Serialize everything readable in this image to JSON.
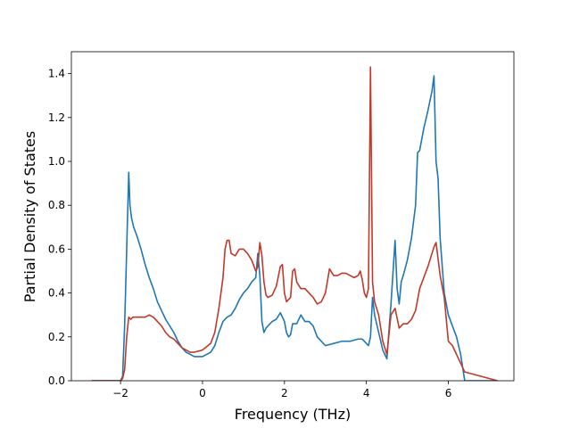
{
  "chart_data": {
    "type": "line",
    "title": "",
    "xlabel": "Frequency (THz)",
    "ylabel": "Partial Density of States",
    "xlim": [
      -3.2,
      7.6
    ],
    "ylim": [
      0.0,
      1.5
    ],
    "xticks": [
      -2,
      0,
      2,
      4,
      6
    ],
    "xtick_labels": [
      "−2",
      "0",
      "2",
      "4",
      "6"
    ],
    "yticks": [
      0.0,
      0.2,
      0.4,
      0.6,
      0.8,
      1.0,
      1.2,
      1.4
    ],
    "ytick_labels": [
      "0.0",
      "0.2",
      "0.4",
      "0.6",
      "0.8",
      "1.0",
      "1.2",
      "1.4"
    ],
    "grid": false,
    "series": [
      {
        "color": "#1f77b4",
        "x": [
          -2.7,
          -2.0,
          -1.95,
          -1.9,
          -1.85,
          -1.8,
          -1.77,
          -1.73,
          -1.68,
          -1.6,
          -1.5,
          -1.4,
          -1.3,
          -1.2,
          -1.1,
          -1.0,
          -0.9,
          -0.8,
          -0.7,
          -0.6,
          -0.5,
          -0.4,
          -0.3,
          -0.2,
          0.0,
          0.2,
          0.3,
          0.4,
          0.5,
          0.6,
          0.7,
          0.8,
          0.9,
          1.0,
          1.1,
          1.2,
          1.3,
          1.35,
          1.4,
          1.45,
          1.5,
          1.55,
          1.6,
          1.7,
          1.8,
          1.9,
          2.0,
          2.05,
          2.1,
          2.15,
          2.2,
          2.3,
          2.4,
          2.5,
          2.6,
          2.7,
          2.8,
          3.0,
          3.2,
          3.4,
          3.6,
          3.8,
          3.9,
          4.0,
          4.05,
          4.1,
          4.15,
          4.2,
          4.3,
          4.4,
          4.5,
          4.6,
          4.7,
          4.75,
          4.8,
          4.85,
          4.9,
          5.0,
          5.1,
          5.2,
          5.25,
          5.3,
          5.4,
          5.5,
          5.6,
          5.65,
          5.7,
          5.75,
          5.8,
          5.9,
          6.0,
          6.1,
          6.2,
          6.3,
          6.4,
          7.2
        ],
        "y": [
          0.0,
          0.0,
          0.02,
          0.25,
          0.6,
          0.95,
          0.8,
          0.74,
          0.7,
          0.66,
          0.6,
          0.53,
          0.47,
          0.42,
          0.36,
          0.32,
          0.28,
          0.25,
          0.22,
          0.18,
          0.15,
          0.13,
          0.12,
          0.11,
          0.11,
          0.13,
          0.16,
          0.22,
          0.27,
          0.29,
          0.3,
          0.33,
          0.37,
          0.4,
          0.42,
          0.45,
          0.47,
          0.58,
          0.48,
          0.27,
          0.22,
          0.24,
          0.25,
          0.27,
          0.28,
          0.31,
          0.27,
          0.22,
          0.2,
          0.21,
          0.26,
          0.26,
          0.3,
          0.27,
          0.27,
          0.25,
          0.2,
          0.16,
          0.17,
          0.18,
          0.18,
          0.19,
          0.19,
          0.17,
          0.16,
          0.2,
          0.38,
          0.3,
          0.22,
          0.14,
          0.1,
          0.35,
          0.64,
          0.42,
          0.35,
          0.45,
          0.48,
          0.55,
          0.65,
          0.8,
          1.04,
          1.05,
          1.15,
          1.23,
          1.32,
          1.39,
          1.0,
          0.92,
          0.65,
          0.4,
          0.3,
          0.25,
          0.2,
          0.12,
          0.0,
          0.0
        ]
      },
      {
        "color": "#c0392b",
        "x": [
          -2.7,
          -2.0,
          -1.95,
          -1.9,
          -1.85,
          -1.8,
          -1.75,
          -1.7,
          -1.6,
          -1.5,
          -1.4,
          -1.3,
          -1.2,
          -1.1,
          -1.0,
          -0.9,
          -0.8,
          -0.7,
          -0.6,
          -0.5,
          -0.4,
          -0.3,
          -0.2,
          0.0,
          0.2,
          0.3,
          0.4,
          0.5,
          0.55,
          0.6,
          0.65,
          0.7,
          0.8,
          0.9,
          1.0,
          1.1,
          1.2,
          1.3,
          1.35,
          1.4,
          1.45,
          1.5,
          1.55,
          1.6,
          1.7,
          1.8,
          1.9,
          1.95,
          2.0,
          2.05,
          2.1,
          2.15,
          2.2,
          2.25,
          2.3,
          2.4,
          2.5,
          2.6,
          2.7,
          2.8,
          2.9,
          3.0,
          3.1,
          3.2,
          3.3,
          3.4,
          3.5,
          3.6,
          3.7,
          3.8,
          3.85,
          3.9,
          3.95,
          4.0,
          4.05,
          4.1,
          4.15,
          4.2,
          4.3,
          4.4,
          4.5,
          4.6,
          4.7,
          4.8,
          4.9,
          5.0,
          5.1,
          5.2,
          5.3,
          5.4,
          5.5,
          5.6,
          5.65,
          5.7,
          5.8,
          5.9,
          6.0,
          6.1,
          6.2,
          6.3,
          6.4,
          7.2
        ],
        "y": [
          0.0,
          0.0,
          0.01,
          0.05,
          0.2,
          0.29,
          0.28,
          0.29,
          0.29,
          0.29,
          0.29,
          0.3,
          0.29,
          0.27,
          0.25,
          0.22,
          0.2,
          0.19,
          0.17,
          0.15,
          0.14,
          0.13,
          0.13,
          0.14,
          0.17,
          0.22,
          0.33,
          0.47,
          0.6,
          0.64,
          0.64,
          0.58,
          0.57,
          0.6,
          0.6,
          0.58,
          0.55,
          0.5,
          0.52,
          0.63,
          0.57,
          0.45,
          0.39,
          0.38,
          0.39,
          0.43,
          0.52,
          0.53,
          0.4,
          0.36,
          0.37,
          0.38,
          0.5,
          0.51,
          0.45,
          0.42,
          0.42,
          0.4,
          0.38,
          0.35,
          0.36,
          0.4,
          0.51,
          0.48,
          0.48,
          0.49,
          0.49,
          0.48,
          0.47,
          0.48,
          0.5,
          0.46,
          0.4,
          0.38,
          0.42,
          1.43,
          0.45,
          0.36,
          0.3,
          0.18,
          0.12,
          0.3,
          0.33,
          0.24,
          0.26,
          0.26,
          0.28,
          0.32,
          0.42,
          0.47,
          0.52,
          0.58,
          0.61,
          0.63,
          0.48,
          0.38,
          0.18,
          0.16,
          0.12,
          0.08,
          0.04,
          0.0
        ]
      }
    ]
  }
}
